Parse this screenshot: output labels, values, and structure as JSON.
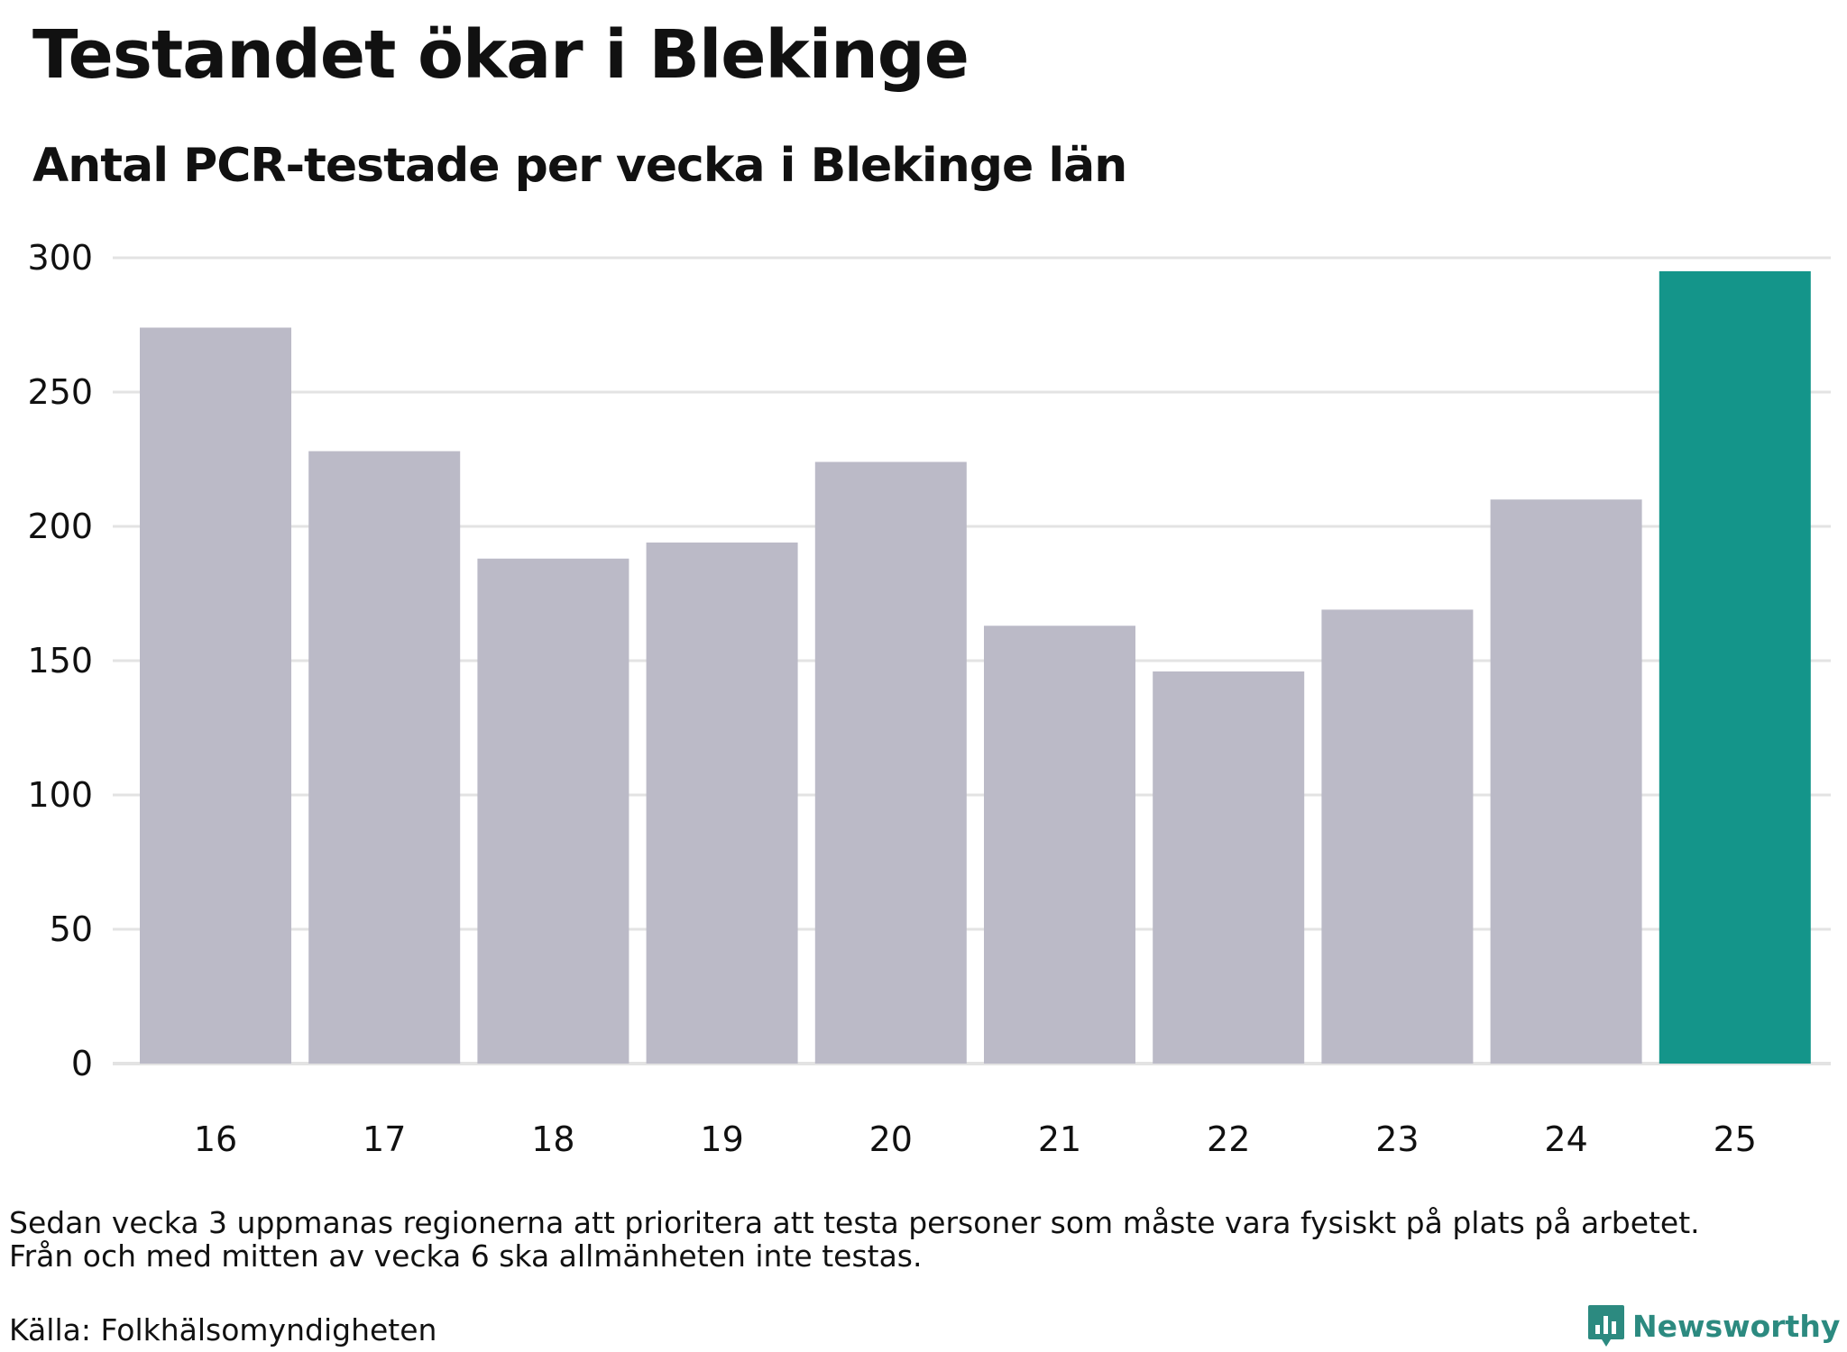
{
  "header": {
    "title": "Testandet ökar i Blekinge",
    "subtitle": "Antal PCR-testade per vecka i Blekinge län"
  },
  "chart_data": {
    "type": "bar",
    "title": "Testandet ökar i Blekinge",
    "subtitle": "Antal PCR-testade per vecka i Blekinge län",
    "categories": [
      "16",
      "17",
      "18",
      "19",
      "20",
      "21",
      "22",
      "23",
      "24",
      "25"
    ],
    "values": [
      274,
      228,
      188,
      194,
      224,
      163,
      146,
      169,
      210,
      295
    ],
    "highlight_index": 9,
    "ylim": [
      0,
      300
    ],
    "yticks": [
      0,
      50,
      100,
      150,
      200,
      250,
      300
    ],
    "grid": true,
    "legend": "none",
    "xlabel": "",
    "ylabel": "",
    "colors": {
      "bar": "#bbbac7",
      "highlight": "#14958a",
      "grid": "#e3e3e3"
    }
  },
  "footer": {
    "note_lines": [
      "Sedan vecka 3 uppmanas regionerna att prioritera att testa personer som måste vara fysiskt på plats på arbetet.",
      "Från och med mitten av vecka 6 ska allmänheten inte testas."
    ],
    "source": "Källa: Folkhälsomyndigheten",
    "brand": "Newsworthy",
    "brand_icon": "bar-chart-speech-bubble-icon",
    "brand_color": "#2c8a80"
  }
}
